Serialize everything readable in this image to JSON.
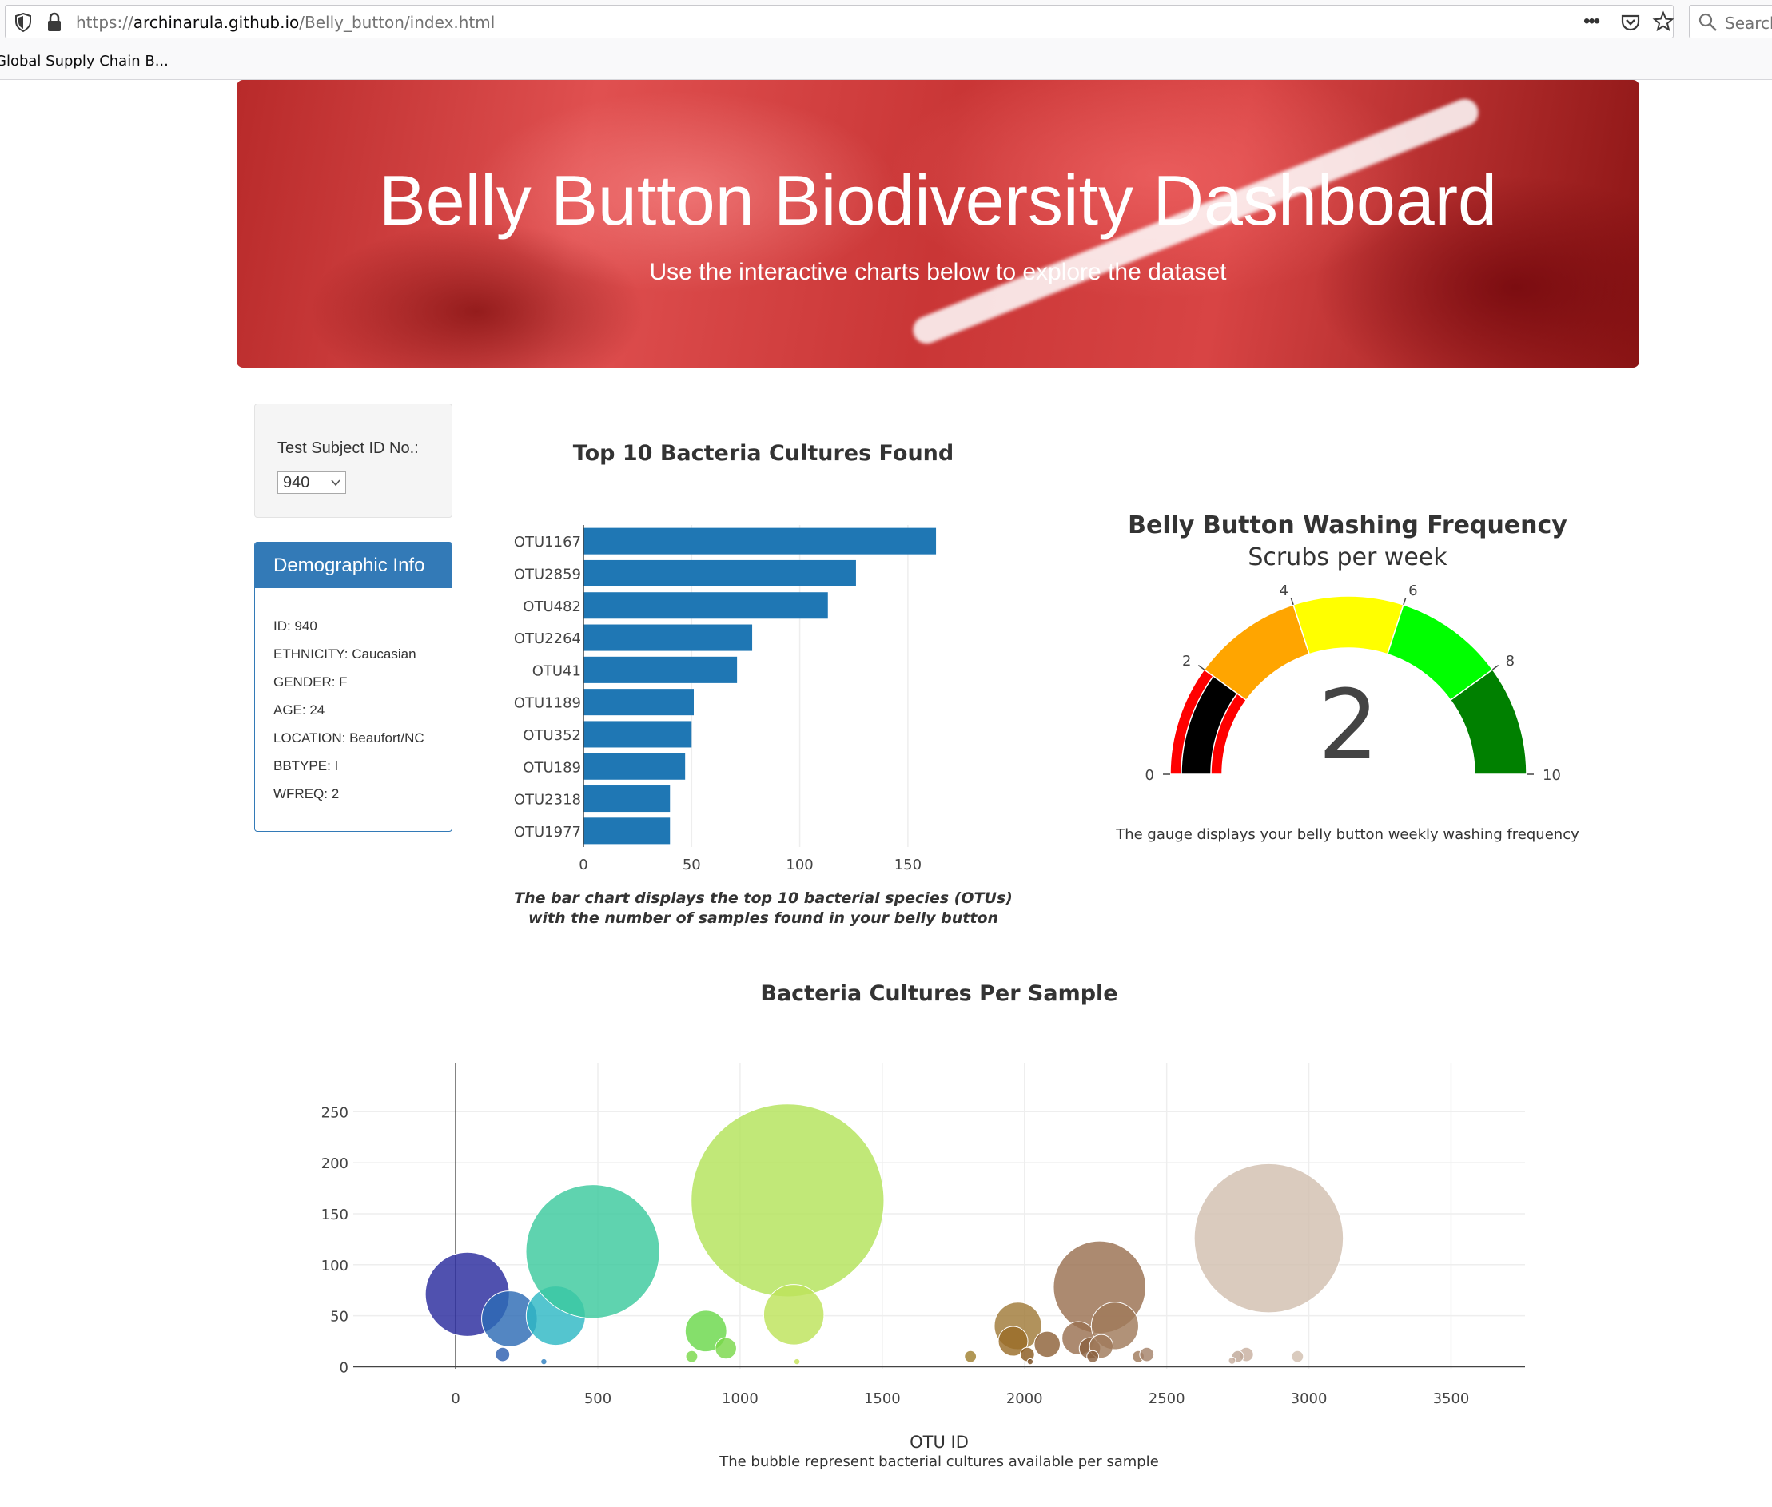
{
  "browser": {
    "url_prefix": "https://",
    "url_domain": "archinarula.github.io",
    "url_path": "/Belly_button/index.html",
    "menu_label": "•••",
    "search_placeholder": "Search",
    "bookmark": "Global Supply Chain B..."
  },
  "header": {
    "title": "Belly Button Biodiversity Dashboard",
    "subtitle": "Use the interactive charts below to explore the dataset"
  },
  "selector": {
    "label": "Test Subject ID No.:",
    "value": "940"
  },
  "demographics": {
    "heading": "Demographic Info",
    "rows": [
      "ID: 940",
      "ETHNICITY: Caucasian",
      "GENDER: F",
      "AGE: 24",
      "LOCATION: Beaufort/NC",
      "BBTYPE: I",
      "WFREQ: 2"
    ]
  },
  "bar_chart": {
    "title": "Top 10 Bacteria Cultures Found",
    "caption_line1": "The bar chart displays the top 10 bacterial species (OTUs)",
    "caption_line2": "with the number of samples found in your belly button"
  },
  "gauge": {
    "title": "Belly Button Washing Frequency",
    "subtitle": "Scrubs per week",
    "caption": "The gauge displays your belly button weekly washing frequency"
  },
  "bubble_chart": {
    "title": "Bacteria Cultures Per Sample",
    "xlabel": "OTU ID",
    "caption": "The bubble represent bacterial cultures available per sample"
  },
  "chart_data": [
    {
      "type": "bar",
      "orientation": "horizontal",
      "categories": [
        "OTU1167",
        "OTU2859",
        "OTU482",
        "OTU2264",
        "OTU41",
        "OTU1189",
        "OTU352",
        "OTU189",
        "OTU2318",
        "OTU1977"
      ],
      "values": [
        163,
        126,
        113,
        78,
        71,
        51,
        50,
        47,
        40,
        40
      ],
      "xlim": [
        0,
        170
      ],
      "xticks": [
        0,
        50,
        100,
        150
      ],
      "color": "#1f77b4",
      "grid": true
    },
    {
      "type": "gauge",
      "value": 2,
      "range": [
        0,
        10
      ],
      "ticks": [
        0,
        2,
        4,
        6,
        8,
        10
      ],
      "steps": [
        {
          "range": [
            0,
            2
          ],
          "color": "#ff0000"
        },
        {
          "range": [
            2,
            4
          ],
          "color": "#ffa500"
        },
        {
          "range": [
            4,
            6
          ],
          "color": "#ffff00"
        },
        {
          "range": [
            6,
            8
          ],
          "color": "#00ff00"
        },
        {
          "range": [
            8,
            10
          ],
          "color": "#008000"
        }
      ],
      "bar_color": "#000000"
    },
    {
      "type": "scatter",
      "marker": "bubble",
      "xlim": [
        -360,
        3760
      ],
      "ylim": [
        -2,
        298
      ],
      "xticks": [
        0,
        500,
        1000,
        1500,
        2000,
        2500,
        3000,
        3500
      ],
      "yticks": [
        0,
        50,
        100,
        150,
        200,
        250
      ],
      "grid": true,
      "points": [
        {
          "x": 41,
          "y": 71,
          "color": "#2a2b9e"
        },
        {
          "x": 189,
          "y": 47,
          "color": "#2d6bb5"
        },
        {
          "x": 352,
          "y": 50,
          "color": "#2eb8c5"
        },
        {
          "x": 482,
          "y": 113,
          "color": "#3cc99d"
        },
        {
          "x": 165,
          "y": 12,
          "color": "#2d5fb0"
        },
        {
          "x": 310,
          "y": 5,
          "color": "#2d7fc0"
        },
        {
          "x": 880,
          "y": 35,
          "color": "#6ad84a"
        },
        {
          "x": 950,
          "y": 18,
          "color": "#7ad84a"
        },
        {
          "x": 830,
          "y": 10,
          "color": "#7ad84a"
        },
        {
          "x": 1167,
          "y": 163,
          "color": "#b3e35a"
        },
        {
          "x": 1189,
          "y": 51,
          "color": "#bde35a"
        },
        {
          "x": 1200,
          "y": 5,
          "color": "#c6e35a"
        },
        {
          "x": 1810,
          "y": 10,
          "color": "#a08030"
        },
        {
          "x": 1977,
          "y": 40,
          "color": "#a07a38"
        },
        {
          "x": 1960,
          "y": 25,
          "color": "#9a6d28"
        },
        {
          "x": 2010,
          "y": 12,
          "color": "#8a5a20"
        },
        {
          "x": 2080,
          "y": 22,
          "color": "#8e6238"
        },
        {
          "x": 2020,
          "y": 5,
          "color": "#7a4d20"
        },
        {
          "x": 2264,
          "y": 78,
          "color": "#9a7050"
        },
        {
          "x": 2190,
          "y": 28,
          "color": "#9a7050"
        },
        {
          "x": 2230,
          "y": 18,
          "color": "#8a6040"
        },
        {
          "x": 2318,
          "y": 40,
          "color": "#a07a5a"
        },
        {
          "x": 2270,
          "y": 20,
          "color": "#a07a5a"
        },
        {
          "x": 2240,
          "y": 10,
          "color": "#8a6040"
        },
        {
          "x": 2400,
          "y": 10,
          "color": "#a07a5a"
        },
        {
          "x": 2430,
          "y": 12,
          "color": "#a5826a"
        },
        {
          "x": 2859,
          "y": 126,
          "color": "#d2c0b0"
        },
        {
          "x": 2780,
          "y": 12,
          "color": "#c8b0a0"
        },
        {
          "x": 2750,
          "y": 10,
          "color": "#c0a898"
        },
        {
          "x": 2960,
          "y": 10,
          "color": "#d2c0b0"
        },
        {
          "x": 2730,
          "y": 6,
          "color": "#c8b0a0"
        }
      ]
    }
  ]
}
